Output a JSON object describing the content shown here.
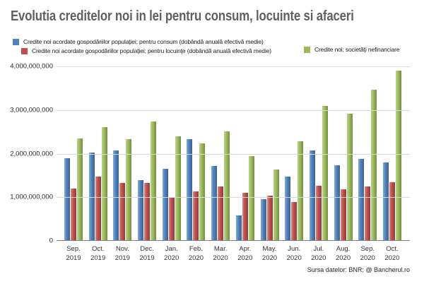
{
  "page": {
    "title": "Evolutia creditelor noi in lei pentru consum, locuinte si afaceri",
    "source": "Sursa datelor: BNR; @ Bancherul.ro"
  },
  "colors": {
    "title_gray": "#5f5f5f",
    "gridline": "#d9d9d9",
    "axis_line": "#7f7f7f",
    "consum_blue": "#4f81bd",
    "locuinte_red": "#c0504d",
    "nefinanciare_green": "#9bbb59"
  },
  "chart_data": {
    "type": "bar",
    "title": "Evolutia creditelor noi in lei pentru consum, locuinte si afaceri",
    "xlabel": "",
    "ylabel": "",
    "ylim": [
      0,
      4000000000
    ],
    "grid": true,
    "legend_position": "top",
    "y_ticks": [
      "4,000,000,000",
      "3,000,000,000",
      "2,000,000,000",
      "1,000,000,000",
      "0"
    ],
    "categories": [
      "Sep. 2019",
      "Oct. 2019",
      "Nov. 2019",
      "Dec. 2019",
      "Jan. 2020",
      "Feb. 2020",
      "Mar. 2020",
      "Apr. 2020",
      "May. 2020",
      "Jun. 2020",
      "Jul. 2020",
      "Aug. 2020",
      "Sep. 2020",
      "Oct. 2020"
    ],
    "series": [
      {
        "name": "Credite noi acordate gospodăriilor populaţiei; pentru consum (dobândă anuală efectivă medie)",
        "color": "#4f81bd",
        "values": [
          1900000000,
          2020000000,
          2070000000,
          1400000000,
          1650000000,
          2330000000,
          1720000000,
          580000000,
          950000000,
          1470000000,
          2080000000,
          1740000000,
          1880000000,
          1790000000
        ]
      },
      {
        "name": "Credite noi acordate gospodăriilor populaţiei; pentru locuinţe (dobândă anuală efectivă medie)",
        "color": "#c0504d",
        "values": [
          1200000000,
          1470000000,
          1330000000,
          1330000000,
          1000000000,
          1140000000,
          1250000000,
          1100000000,
          1040000000,
          890000000,
          1270000000,
          1180000000,
          1240000000,
          1340000000
        ]
      },
      {
        "name": "Credite noi; societăţi nefinanciare",
        "color": "#9bbb59",
        "values": [
          2350000000,
          2600000000,
          2340000000,
          2740000000,
          2400000000,
          2240000000,
          2510000000,
          1950000000,
          1630000000,
          2290000000,
          3100000000,
          2910000000,
          3470000000,
          3900000000
        ]
      }
    ],
    "source": "Sursa datelor: BNR; @ Bancherul.ro"
  }
}
